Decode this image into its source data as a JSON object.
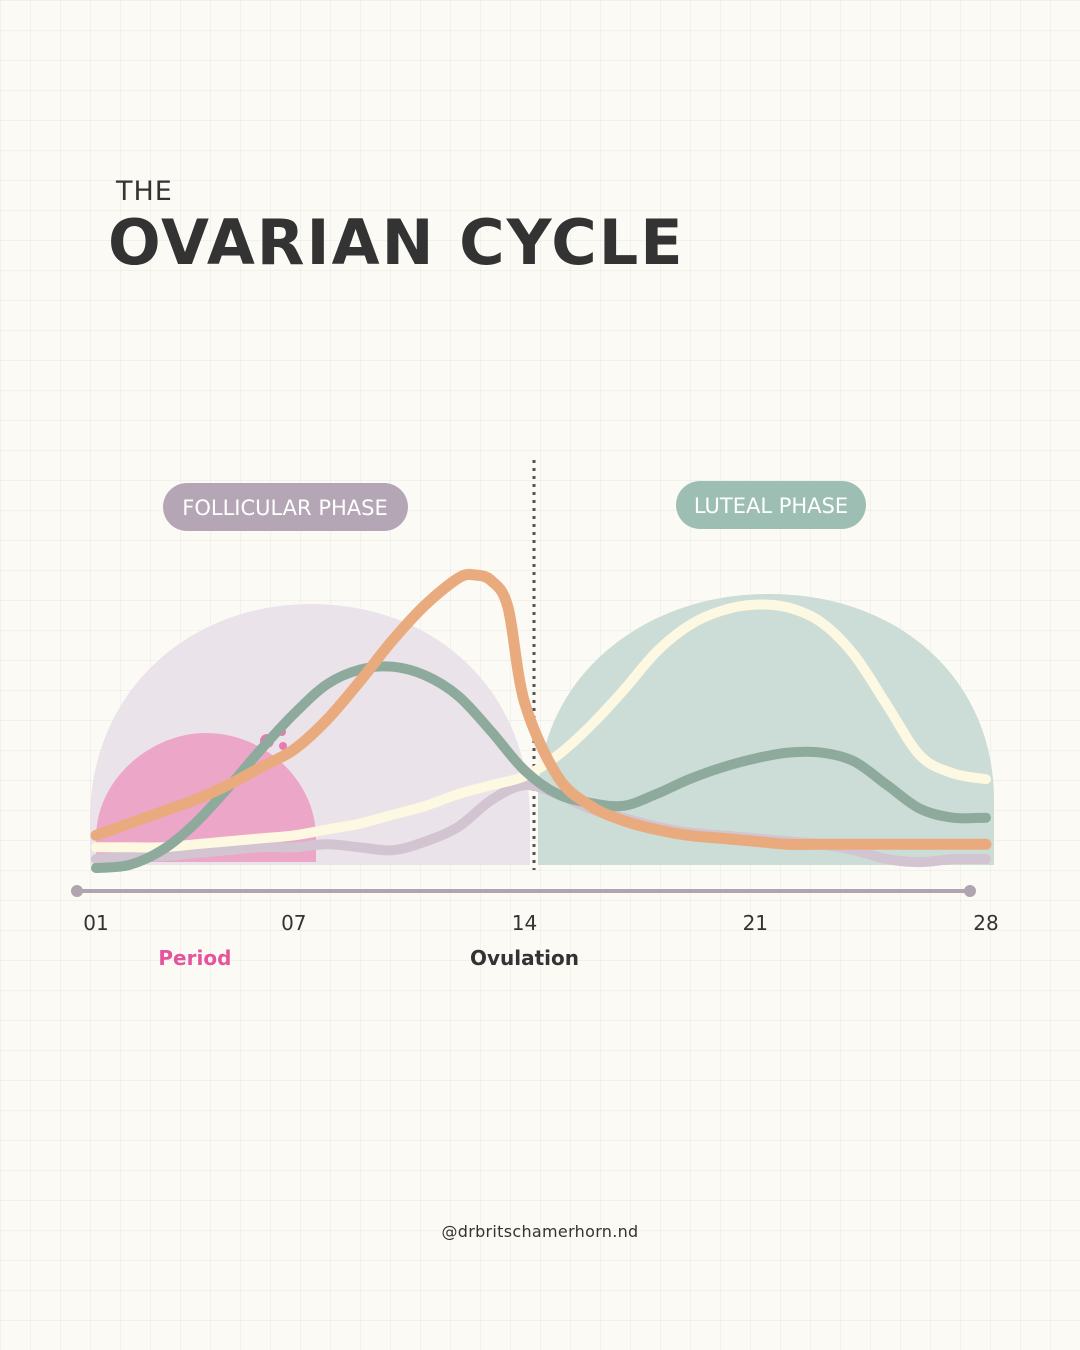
{
  "title": {
    "small": "THE",
    "big": "OVARIAN CYCLE"
  },
  "chart_data": {
    "type": "line",
    "title": "THE OVARIAN CYCLE",
    "xlabel": "",
    "ylabel": "",
    "xlim": [
      1,
      28
    ],
    "ylim": [
      0,
      100
    ],
    "grid": false,
    "legend": "none",
    "x_ticks": [
      {
        "value": 1,
        "label": "01"
      },
      {
        "value": 7,
        "label": "07"
      },
      {
        "value": 14,
        "label": "14"
      },
      {
        "value": 21,
        "label": "21"
      },
      {
        "value": 28,
        "label": "28"
      }
    ],
    "phases": [
      {
        "name": "FOLLICULAR PHASE",
        "start": 1,
        "end": 14,
        "color": "#b5a6b5",
        "fill": "#ebe3ea"
      },
      {
        "name": "LUTEAL PHASE",
        "start": 14,
        "end": 28,
        "color": "#9dbfb3",
        "fill": "#cbddd6"
      }
    ],
    "markers": [
      {
        "label": "Period",
        "day": 4,
        "color": "#e5559c"
      },
      {
        "label": "Ovulation",
        "day": 14,
        "color": "#333333"
      }
    ],
    "period_fill": "#eca6c8",
    "series": [
      {
        "name": "orange",
        "color": "#e9ab7e",
        "x": [
          1,
          2,
          3,
          4,
          5,
          6,
          7,
          8,
          9,
          10,
          11,
          12,
          12.5,
          13,
          13.5,
          14,
          15,
          16,
          17,
          18,
          19,
          20,
          21,
          22,
          23,
          24,
          25,
          26,
          27,
          28
        ],
        "values": [
          11,
          15,
          19,
          23,
          28,
          34,
          40,
          50,
          63,
          77,
          89,
          98,
          99,
          97,
          88,
          56,
          31,
          21,
          16,
          13,
          11,
          10,
          9,
          8,
          8,
          8,
          8,
          8,
          8,
          8
        ]
      },
      {
        "name": "green",
        "color": "#8eaa9c",
        "x": [
          1,
          2,
          3,
          4,
          5,
          6,
          7,
          8,
          9,
          10,
          11,
          12,
          13,
          14,
          15,
          16,
          17,
          18,
          19,
          20,
          21,
          22,
          23,
          24,
          25,
          26,
          27,
          28
        ],
        "values": [
          0,
          1,
          6,
          15,
          27,
          40,
          52,
          62,
          67,
          68,
          65,
          58,
          46,
          33,
          25,
          22,
          21,
          25,
          30,
          34,
          37,
          39,
          39,
          36,
          28,
          20,
          17,
          17
        ]
      },
      {
        "name": "cream",
        "color": "#fdf8e1",
        "x": [
          1,
          2,
          3,
          4,
          5,
          6,
          7,
          8,
          9,
          10,
          11,
          12,
          13,
          14,
          15,
          16,
          17,
          18,
          19,
          20,
          21,
          22,
          23,
          24,
          25,
          26,
          27,
          28
        ],
        "values": [
          7,
          7,
          7,
          8,
          9,
          10,
          11,
          13,
          15,
          18,
          21,
          25,
          28,
          31,
          38,
          48,
          60,
          73,
          82,
          87,
          89,
          88,
          83,
          72,
          55,
          38,
          32,
          30
        ]
      },
      {
        "name": "mauve",
        "color": "#d2c4d0",
        "x": [
          1,
          2,
          3,
          4,
          5,
          6,
          7,
          8,
          9,
          10,
          11,
          12,
          13,
          14,
          15,
          16,
          17,
          18,
          19,
          20,
          21,
          22,
          23,
          24,
          25,
          26,
          27,
          28
        ],
        "values": [
          3,
          4,
          4,
          5,
          6,
          7,
          7,
          8,
          7,
          6,
          9,
          14,
          23,
          28,
          25,
          20,
          17,
          14,
          12,
          11,
          10,
          9,
          8,
          6,
          3,
          2,
          3,
          3
        ]
      }
    ]
  },
  "handle": "@drbritschamerhorn.nd",
  "colors": {
    "background": "#fbfaf5",
    "text": "#333333",
    "axis": "#b0a4b0"
  }
}
